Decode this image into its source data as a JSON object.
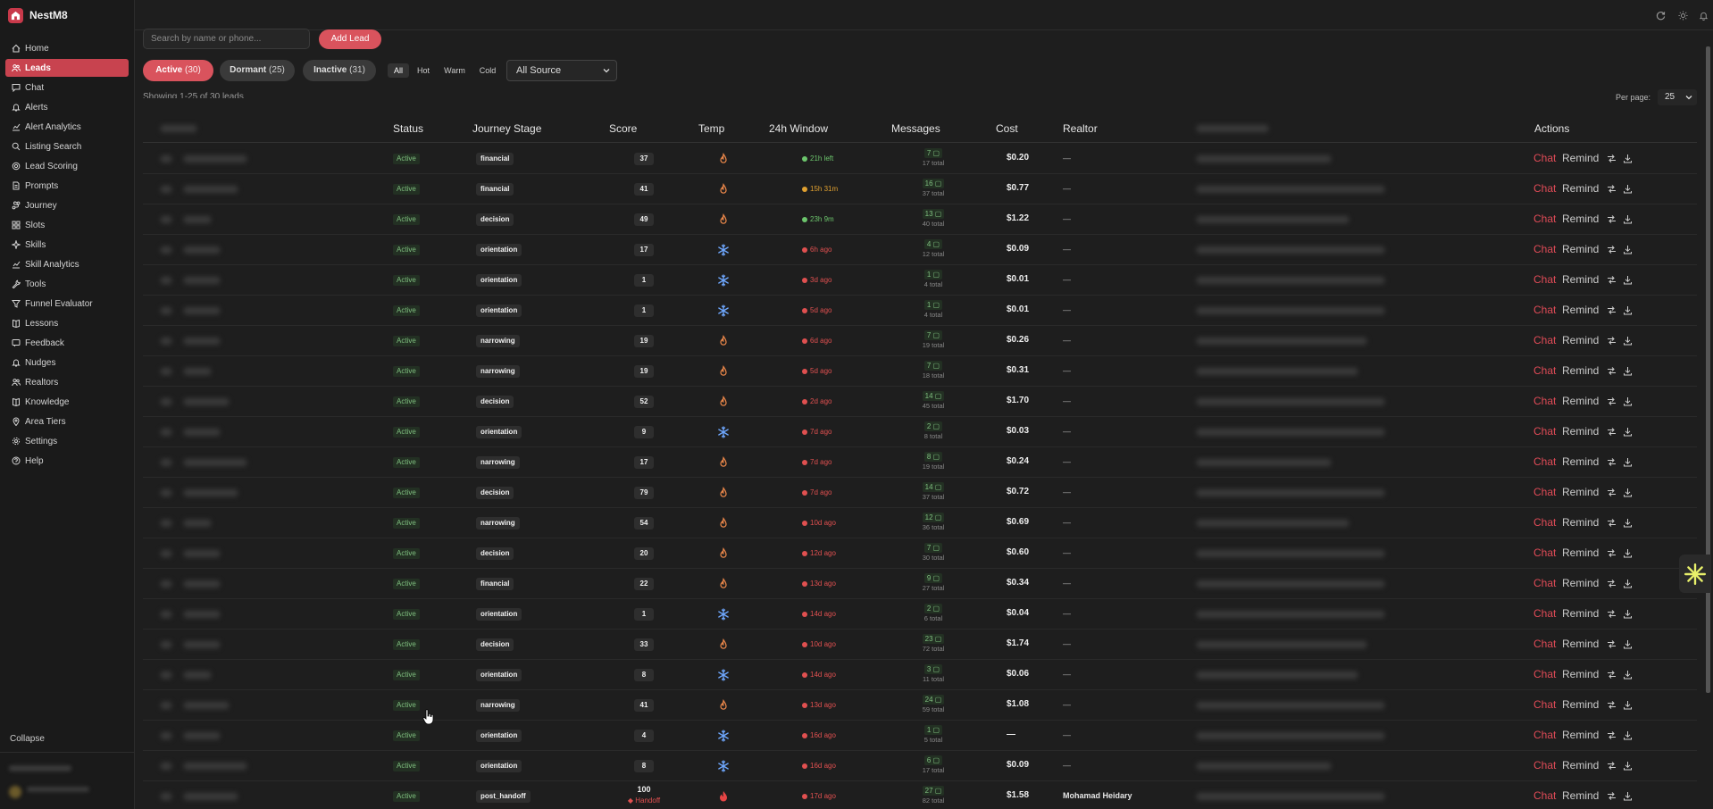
{
  "app": {
    "name": "NestM8"
  },
  "sidebar": {
    "items": [
      {
        "label": "Home",
        "icon": "home-icon",
        "active": false
      },
      {
        "label": "Leads",
        "icon": "users-icon",
        "active": true
      },
      {
        "label": "Chat",
        "icon": "chat-icon",
        "active": false
      },
      {
        "label": "Alerts",
        "icon": "bell-icon",
        "active": false
      },
      {
        "label": "Alert Analytics",
        "icon": "chart-icon",
        "active": false
      },
      {
        "label": "Listing Search",
        "icon": "search-icon",
        "active": false
      },
      {
        "label": "Lead Scoring",
        "icon": "target-icon",
        "active": false
      },
      {
        "label": "Prompts",
        "icon": "document-icon",
        "active": false
      },
      {
        "label": "Journey",
        "icon": "route-icon",
        "active": false
      },
      {
        "label": "Slots",
        "icon": "grid-icon",
        "active": false
      },
      {
        "label": "Skills",
        "icon": "sparkle-icon",
        "active": false
      },
      {
        "label": "Skill Analytics",
        "icon": "chart-icon",
        "active": false
      },
      {
        "label": "Tools",
        "icon": "wrench-icon",
        "active": false
      },
      {
        "label": "Funnel Evaluator",
        "icon": "funnel-icon",
        "active": false
      },
      {
        "label": "Lessons",
        "icon": "book-icon",
        "active": false
      },
      {
        "label": "Feedback",
        "icon": "message-icon",
        "active": false
      },
      {
        "label": "Nudges",
        "icon": "bell-icon",
        "active": false
      },
      {
        "label": "Realtors",
        "icon": "users-icon",
        "active": false
      },
      {
        "label": "Knowledge",
        "icon": "book-icon",
        "active": false
      },
      {
        "label": "Area Tiers",
        "icon": "map-pin-icon",
        "active": false
      },
      {
        "label": "Settings",
        "icon": "gear-icon",
        "active": false
      },
      {
        "label": "Help",
        "icon": "help-icon",
        "active": false
      }
    ],
    "collapse_label": "Collapse"
  },
  "topbar": {
    "icons": [
      "refresh-icon",
      "sun-icon",
      "bell-icon"
    ]
  },
  "toolbar": {
    "search_placeholder": "Search by name or phone...",
    "add_lead_label": "Add Lead",
    "tabs": [
      {
        "label": "Active",
        "count": "(30)",
        "active": true
      },
      {
        "label": "Dormant",
        "count": "(25)",
        "active": false
      },
      {
        "label": "Inactive",
        "count": "(31)",
        "active": false
      }
    ],
    "temp_filters": [
      {
        "label": "All",
        "active": true
      },
      {
        "label": "Hot",
        "active": false
      },
      {
        "label": "Warm",
        "active": false
      },
      {
        "label": "Cold",
        "active": false
      }
    ],
    "source_selected": "All Source",
    "showing_text": "Showing 1-25 of 30 leads",
    "per_page_label": "Per page:",
    "per_page_value": "25"
  },
  "table": {
    "columns": {
      "status": "Status",
      "journey": "Journey Stage",
      "score": "Score",
      "temp": "Temp",
      "window": "24h Window",
      "messages": "Messages",
      "cost": "Cost",
      "realtor": "Realtor",
      "actions": "Actions"
    },
    "action_labels": {
      "chat": "Chat",
      "remind": "Remind"
    },
    "rows": [
      {
        "status": "Active",
        "stage": "financial",
        "score": "37",
        "temp": "warm",
        "window": "21h left",
        "window_state": "open",
        "msgs": "7",
        "total": "17 total",
        "cost": "$0.20",
        "realtor": "—"
      },
      {
        "status": "Active",
        "stage": "financial",
        "score": "41",
        "temp": "warm",
        "window": "15h 31m",
        "window_state": "closing",
        "msgs": "16",
        "total": "37 total",
        "cost": "$0.77",
        "realtor": "—"
      },
      {
        "status": "Active",
        "stage": "decision",
        "score": "49",
        "temp": "warm",
        "window": "23h 9m",
        "window_state": "open",
        "msgs": "13",
        "total": "40 total",
        "cost": "$1.22",
        "realtor": "—"
      },
      {
        "status": "Active",
        "stage": "orientation",
        "score": "17",
        "temp": "cold",
        "window": "6h ago",
        "window_state": "expired",
        "msgs": "4",
        "total": "12 total",
        "cost": "$0.09",
        "realtor": "—"
      },
      {
        "status": "Active",
        "stage": "orientation",
        "score": "1",
        "temp": "cold",
        "window": "3d ago",
        "window_state": "expired",
        "msgs": "1",
        "total": "4 total",
        "cost": "$0.01",
        "realtor": "—"
      },
      {
        "status": "Active",
        "stage": "orientation",
        "score": "1",
        "temp": "cold",
        "window": "5d ago",
        "window_state": "expired",
        "msgs": "1",
        "total": "4 total",
        "cost": "$0.01",
        "realtor": "—"
      },
      {
        "status": "Active",
        "stage": "narrowing",
        "score": "19",
        "temp": "warm",
        "window": "6d ago",
        "window_state": "expired",
        "msgs": "7",
        "total": "19 total",
        "cost": "$0.26",
        "realtor": "—"
      },
      {
        "status": "Active",
        "stage": "narrowing",
        "score": "19",
        "temp": "warm",
        "window": "5d ago",
        "window_state": "expired",
        "msgs": "7",
        "total": "18 total",
        "cost": "$0.31",
        "realtor": "—"
      },
      {
        "status": "Active",
        "stage": "decision",
        "score": "52",
        "temp": "warm",
        "window": "2d ago",
        "window_state": "expired",
        "msgs": "14",
        "total": "45 total",
        "cost": "$1.70",
        "realtor": "—"
      },
      {
        "status": "Active",
        "stage": "orientation",
        "score": "9",
        "temp": "cold",
        "window": "7d ago",
        "window_state": "expired",
        "msgs": "2",
        "total": "8 total",
        "cost": "$0.03",
        "realtor": "—"
      },
      {
        "status": "Active",
        "stage": "narrowing",
        "score": "17",
        "temp": "warm",
        "window": "7d ago",
        "window_state": "expired",
        "msgs": "8",
        "total": "19 total",
        "cost": "$0.24",
        "realtor": "—"
      },
      {
        "status": "Active",
        "stage": "decision",
        "score": "79",
        "temp": "warm",
        "window": "7d ago",
        "window_state": "expired",
        "msgs": "14",
        "total": "37 total",
        "cost": "$0.72",
        "realtor": "—"
      },
      {
        "status": "Active",
        "stage": "narrowing",
        "score": "54",
        "temp": "warm",
        "window": "10d ago",
        "window_state": "expired",
        "msgs": "12",
        "total": "36 total",
        "cost": "$0.69",
        "realtor": "—"
      },
      {
        "status": "Active",
        "stage": "decision",
        "score": "20",
        "temp": "warm",
        "window": "12d ago",
        "window_state": "expired",
        "msgs": "7",
        "total": "30 total",
        "cost": "$0.60",
        "realtor": "—"
      },
      {
        "status": "Active",
        "stage": "financial",
        "score": "22",
        "temp": "warm",
        "window": "13d ago",
        "window_state": "expired",
        "msgs": "9",
        "total": "27 total",
        "cost": "$0.34",
        "realtor": "—"
      },
      {
        "status": "Active",
        "stage": "orientation",
        "score": "1",
        "temp": "cold",
        "window": "14d ago",
        "window_state": "expired",
        "msgs": "2",
        "total": "6 total",
        "cost": "$0.04",
        "realtor": "—"
      },
      {
        "status": "Active",
        "stage": "decision",
        "score": "33",
        "temp": "warm",
        "window": "10d ago",
        "window_state": "expired",
        "msgs": "23",
        "total": "72 total",
        "cost": "$1.74",
        "realtor": "—"
      },
      {
        "status": "Active",
        "stage": "orientation",
        "score": "8",
        "temp": "cold",
        "window": "14d ago",
        "window_state": "expired",
        "msgs": "3",
        "total": "11 total",
        "cost": "$0.06",
        "realtor": "—"
      },
      {
        "status": "Active",
        "stage": "narrowing",
        "score": "41",
        "temp": "warm",
        "window": "13d ago",
        "window_state": "expired",
        "msgs": "24",
        "total": "59 total",
        "cost": "$1.08",
        "realtor": "—"
      },
      {
        "status": "Active",
        "stage": "orientation",
        "score": "4",
        "temp": "cold",
        "window": "16d ago",
        "window_state": "expired",
        "msgs": "1",
        "total": "5 total",
        "cost": "—",
        "realtor": "—"
      },
      {
        "status": "Active",
        "stage": "orientation",
        "score": "8",
        "temp": "cold",
        "window": "16d ago",
        "window_state": "expired",
        "msgs": "6",
        "total": "17 total",
        "cost": "$0.09",
        "realtor": "—"
      },
      {
        "status": "Active",
        "stage": "post_handoff",
        "score": "100",
        "score_sub": "Handoff",
        "temp": "hot",
        "window": "17d ago",
        "window_state": "expired",
        "msgs": "27",
        "total": "82 total",
        "cost": "$1.58",
        "realtor": "Mohamad Heidary"
      }
    ]
  },
  "colors": {
    "accent": "#d9535d",
    "active_nav": "#c8434f",
    "window_open": "#6cc56c",
    "window_closing": "#e0a030",
    "window_expired": "#e05050"
  }
}
